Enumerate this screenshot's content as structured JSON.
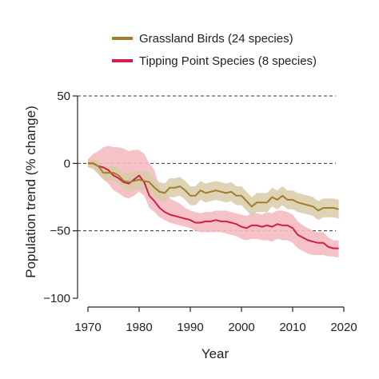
{
  "chart_data": {
    "type": "line",
    "title": "",
    "xlabel": "Year",
    "ylabel": "Population trend (% change)",
    "xlim": [
      1970,
      2020
    ],
    "ylim": [
      -100,
      50
    ],
    "x_ticks": [
      1970,
      1980,
      1990,
      2000,
      2010,
      2020
    ],
    "x_tick_labels": [
      "1970",
      "1980",
      "1990",
      "2000",
      "2010",
      "2020"
    ],
    "y_ticks": [
      50,
      0,
      -50,
      -100
    ],
    "y_tick_labels": [
      "50",
      "0",
      "−50",
      "−100"
    ],
    "dashed_gridlines_y": [
      50,
      0,
      -50
    ],
    "legend_placement": "top-center",
    "x": [
      1970,
      1971,
      1972,
      1973,
      1974,
      1975,
      1976,
      1977,
      1978,
      1979,
      1980,
      1981,
      1982,
      1983,
      1984,
      1985,
      1986,
      1987,
      1988,
      1989,
      1990,
      1991,
      1992,
      1993,
      1994,
      1995,
      1996,
      1997,
      1998,
      1999,
      2000,
      2001,
      2002,
      2003,
      2004,
      2005,
      2006,
      2007,
      2008,
      2009,
      2010,
      2011,
      2012,
      2013,
      2014,
      2015,
      2016,
      2017,
      2018,
      2019
    ],
    "series": [
      {
        "name": "Grassland Birds (24 species)",
        "color": "#a27e2c",
        "band_color": "#d8cba8",
        "values": [
          0,
          0,
          -2,
          -7,
          -7,
          -7,
          -9,
          -13,
          -14,
          -13,
          -12,
          -13,
          -14,
          -18,
          -21,
          -22,
          -18,
          -18,
          -17,
          -20,
          -24,
          -24,
          -20,
          -22,
          -21,
          -20,
          -21,
          -22,
          -21,
          -24,
          -24,
          -28,
          -32,
          -29,
          -29,
          -29,
          -25,
          -27,
          -24,
          -27,
          -27,
          -29,
          -30,
          -31,
          -32,
          -35,
          -33,
          -33,
          -33,
          -34
        ],
        "lower": [
          -3,
          -4,
          -7,
          -12,
          -13,
          -13,
          -15,
          -19,
          -21,
          -20,
          -19,
          -20,
          -21,
          -25,
          -28,
          -29,
          -25,
          -25,
          -24,
          -27,
          -31,
          -31,
          -27,
          -29,
          -28,
          -27,
          -28,
          -29,
          -28,
          -31,
          -31,
          -35,
          -39,
          -36,
          -36,
          -36,
          -32,
          -34,
          -31,
          -34,
          -34,
          -36,
          -37,
          -38,
          -39,
          -42,
          -40,
          -40,
          -40,
          -41
        ],
        "upper": [
          2,
          3,
          2,
          -2,
          -2,
          -2,
          -3,
          -7,
          -7,
          -6,
          -5,
          -6,
          -7,
          -11,
          -14,
          -15,
          -11,
          -11,
          -10,
          -13,
          -17,
          -17,
          -13,
          -15,
          -14,
          -13,
          -14,
          -15,
          -14,
          -17,
          -17,
          -21,
          -25,
          -22,
          -22,
          -22,
          -18,
          -20,
          -17,
          -20,
          -20,
          -22,
          -23,
          -24,
          -25,
          -28,
          -26,
          -26,
          -26,
          -27
        ]
      },
      {
        "name": "Tipping Point Species (8 species)",
        "color": "#d01f4a",
        "band_color": "#f4bcc1",
        "values": [
          0,
          0,
          -2,
          -3,
          -5,
          -9,
          -11,
          -14,
          -15,
          -12,
          -9,
          -14,
          -24,
          -28,
          -33,
          -36,
          -38,
          -39,
          -40,
          -41,
          -42,
          -44,
          -44,
          -43,
          -43,
          -42,
          -43,
          -43,
          -44,
          -45,
          -47,
          -48,
          -46,
          -46,
          -47,
          -46,
          -47,
          -45,
          -46,
          -46,
          -48,
          -53,
          -55,
          -57,
          -58,
          -59,
          -59,
          -62,
          -63,
          -63
        ],
        "lower": [
          -2,
          -4,
          -8,
          -12,
          -15,
          -20,
          -22,
          -25,
          -26,
          -24,
          -21,
          -24,
          -33,
          -36,
          -40,
          -42,
          -44,
          -45,
          -46,
          -47,
          -48,
          -50,
          -51,
          -51,
          -51,
          -51,
          -51,
          -52,
          -53,
          -54,
          -56,
          -57,
          -56,
          -56,
          -57,
          -57,
          -58,
          -56,
          -57,
          -57,
          -59,
          -63,
          -65,
          -67,
          -68,
          -68,
          -68,
          -69,
          -69,
          -70
        ],
        "upper": [
          3,
          7,
          9,
          12,
          13,
          12,
          12,
          11,
          9,
          10,
          10,
          7,
          0,
          -5,
          -18,
          -22,
          -26,
          -28,
          -30,
          -33,
          -35,
          -36,
          -37,
          -36,
          -36,
          -35,
          -35,
          -35,
          -36,
          -37,
          -38,
          -39,
          -37,
          -37,
          -38,
          -36,
          -37,
          -35,
          -35,
          -36,
          -38,
          -43,
          -46,
          -48,
          -50,
          -51,
          -51,
          -55,
          -57,
          -57
        ]
      }
    ]
  }
}
